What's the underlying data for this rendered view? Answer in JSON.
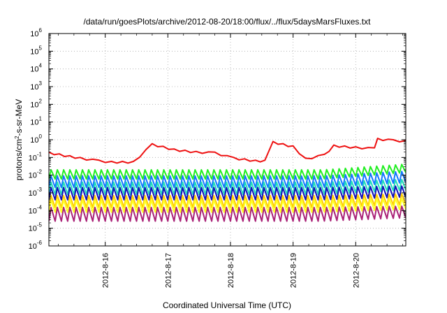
{
  "chart_data": {
    "type": "line",
    "title": "/data/run/goesPlots/archive/2012-08-20/18:00/flux/../flux/5daysMarsFluxes.txt",
    "xlabel": "Coordinated Universal Time (UTC)",
    "ylabel": "protons/cm²-s-sr-MeV",
    "ylabel_parts": {
      "pre": "protons/cm",
      "sup": "2",
      "post": "-s-sr-MeV"
    },
    "yscale": "log",
    "ylim_exp": [
      -6,
      6
    ],
    "y_ticks": [
      {
        "base": "10",
        "exp": "-6"
      },
      {
        "base": "10",
        "exp": "-5"
      },
      {
        "base": "10",
        "exp": "-4"
      },
      {
        "base": "10",
        "exp": "-3"
      },
      {
        "base": "10",
        "exp": "-2"
      },
      {
        "base": "10",
        "exp": "-1"
      },
      {
        "base": "10",
        "exp": "0"
      },
      {
        "base": "10",
        "exp": "1"
      },
      {
        "base": "10",
        "exp": "2"
      },
      {
        "base": "10",
        "exp": "3"
      },
      {
        "base": "10",
        "exp": "4"
      },
      {
        "base": "10",
        "exp": "5"
      },
      {
        "base": "10",
        "exp": "6"
      }
    ],
    "xlim": [
      15.1,
      20.8
    ],
    "x_ticks": [
      {
        "value": 16,
        "label": "2012-8-16"
      },
      {
        "value": 17,
        "label": "2012-8-17"
      },
      {
        "value": 18,
        "label": "2012-8-18"
      },
      {
        "value": 19,
        "label": "2012-8-19"
      },
      {
        "value": 20,
        "label": "2012-8-20"
      }
    ],
    "grid": true,
    "series": [
      {
        "color": "#ee1111",
        "style": "red",
        "points": [
          [
            15.1,
            0.2
          ],
          [
            15.6,
            0.1
          ],
          [
            15.9,
            0.07
          ],
          [
            16.1,
            0.06
          ],
          [
            16.45,
            0.06
          ],
          [
            16.75,
            0.6
          ],
          [
            17.1,
            0.3
          ],
          [
            17.45,
            0.22
          ],
          [
            17.75,
            0.2
          ],
          [
            18.05,
            0.1
          ],
          [
            18.4,
            0.07
          ],
          [
            18.55,
            0.07
          ],
          [
            18.68,
            0.8
          ],
          [
            19.0,
            0.45
          ],
          [
            19.2,
            0.09
          ],
          [
            19.5,
            0.15
          ],
          [
            19.65,
            0.5
          ],
          [
            20.0,
            0.4
          ],
          [
            20.3,
            0.35
          ],
          [
            20.35,
            1.2
          ],
          [
            20.6,
            1.0
          ],
          [
            20.8,
            0.9
          ]
        ]
      },
      {
        "color": "#22ee22",
        "style": "saw",
        "low": 0.006,
        "high": 0.02,
        "end_low": 0.015,
        "end_high": 0.045
      },
      {
        "color": "#1177ff",
        "style": "saw",
        "low": 0.002,
        "high": 0.009,
        "end_low": 0.004,
        "end_high": 0.018
      },
      {
        "color": "#22ddbb",
        "style": "saw",
        "low": 0.0008,
        "high": 0.004,
        "end_low": 0.0015,
        "end_high": 0.006
      },
      {
        "color": "#1111bb",
        "style": "saw",
        "low": 0.0004,
        "high": 0.002,
        "end_low": 0.0006,
        "end_high": 0.0025
      },
      {
        "color": "#ffcc00",
        "style": "saw",
        "low": 0.00015,
        "high": 0.0007,
        "end_low": 0.00022,
        "end_high": 0.0009
      },
      {
        "color": "#ffff22",
        "style": "saw",
        "low": 8e-05,
        "high": 0.0004,
        "end_low": 0.00012,
        "end_high": 0.0005
      },
      {
        "color": "#aa2277",
        "style": "saw",
        "low": 2.5e-05,
        "high": 0.00015,
        "end_low": 4e-05,
        "end_high": 0.00018
      }
    ]
  }
}
